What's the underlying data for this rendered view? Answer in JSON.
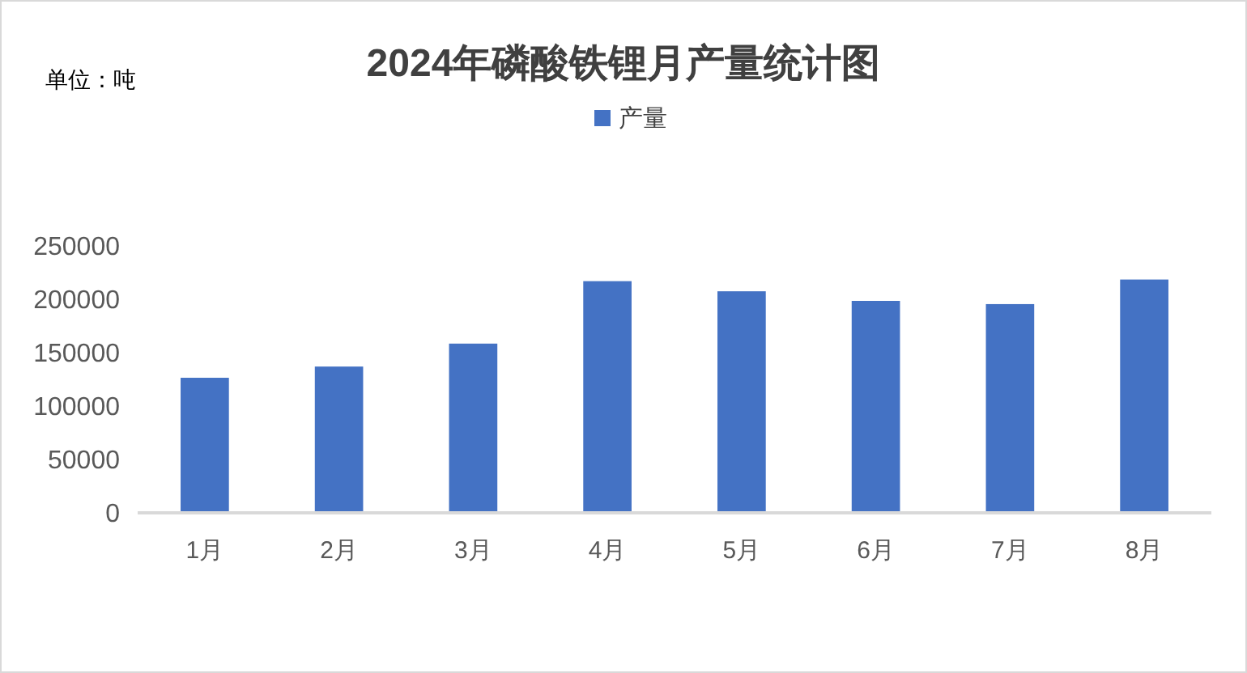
{
  "chart_data": {
    "type": "bar",
    "title": "2024年磷酸铁锂月产量统计图",
    "annotations": [
      "单位：吨"
    ],
    "categories": [
      "1月",
      "2月",
      "3月",
      "4月",
      "5月",
      "6月",
      "7月",
      "8月"
    ],
    "series": [
      {
        "name": "产量",
        "color": "#4472c4",
        "values": [
          126500,
          137000,
          158500,
          217000,
          207500,
          198500,
          195500,
          218500
        ]
      }
    ],
    "ylim": [
      0,
      250000
    ],
    "yticks": [
      0,
      50000,
      100000,
      150000,
      200000,
      250000
    ],
    "grid": false,
    "legend": "top"
  }
}
